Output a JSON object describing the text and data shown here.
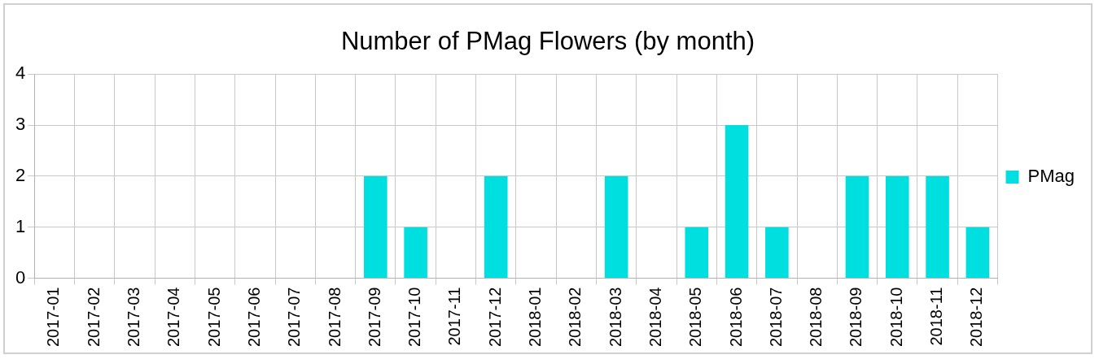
{
  "chart_data": {
    "type": "bar",
    "title": "Number of PMag Flowers (by month)",
    "categories": [
      "2017-01",
      "2017-02",
      "2017-03",
      "2017-04",
      "2017-05",
      "2017-06",
      "2017-07",
      "2017-08",
      "2017-09",
      "2017-10",
      "2017-11",
      "2017-12",
      "2018-01",
      "2018-02",
      "2018-03",
      "2018-04",
      "2018-05",
      "2018-06",
      "2018-07",
      "2018-08",
      "2018-09",
      "2018-10",
      "2018-11",
      "2018-12"
    ],
    "series": [
      {
        "name": "PMag",
        "color": "#00dfdf",
        "values": [
          0,
          0,
          0,
          0,
          0,
          0,
          0,
          0,
          2,
          1,
          0,
          2,
          0,
          0,
          2,
          0,
          1,
          3,
          1,
          0,
          2,
          2,
          2,
          1
        ]
      }
    ],
    "ylim": [
      0,
      4
    ],
    "yticks": [
      0,
      1,
      2,
      3,
      4
    ],
    "grid": true,
    "legend": "right"
  }
}
